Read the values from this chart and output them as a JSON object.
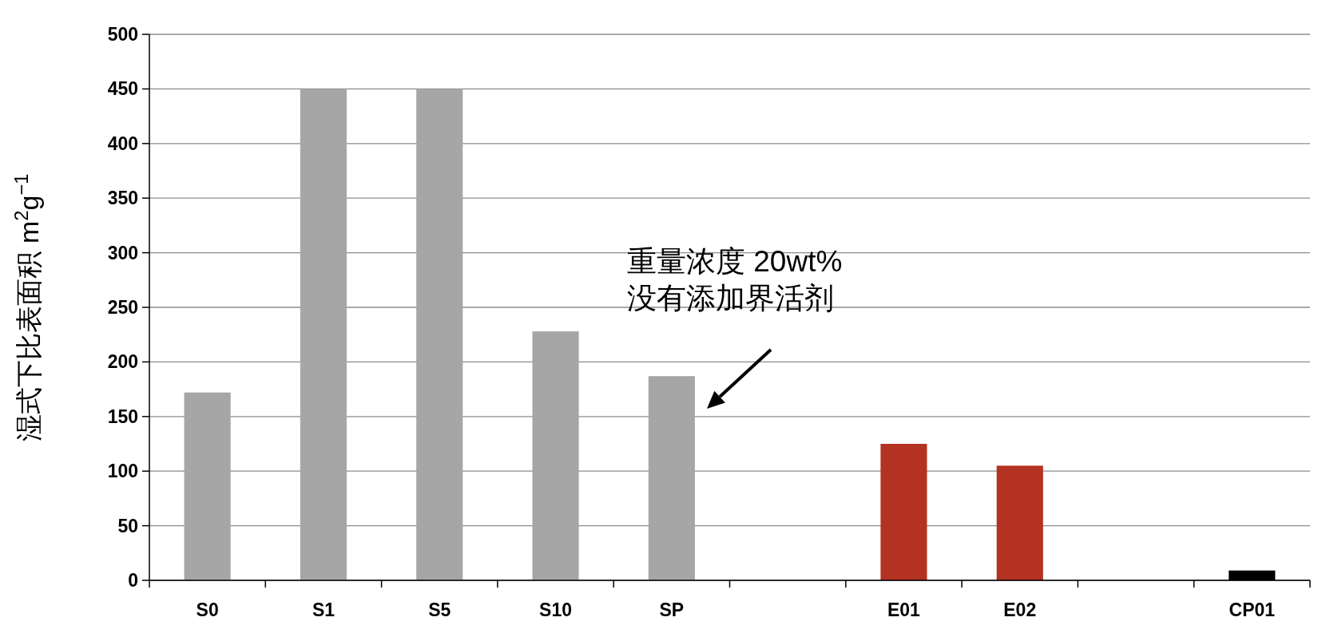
{
  "chart_data": {
    "type": "bar",
    "ylabel": "湿式下比表面积 m$^{2}$g$^{−1}$",
    "categories": [
      "S0",
      "S1",
      "S5",
      "S10",
      "SP",
      null,
      "E01",
      "E02",
      null,
      "CP01"
    ],
    "values": [
      172,
      450,
      450,
      228,
      187,
      null,
      125,
      105,
      null,
      9
    ],
    "colors": [
      "#a6a6a6",
      "#a6a6a6",
      "#a6a6a6",
      "#a6a6a6",
      "#a6a6a6",
      null,
      "#b33222",
      "#b33222",
      null,
      "#000000"
    ],
    "ylim": [
      0,
      500
    ],
    "yticks": [
      0,
      50,
      100,
      150,
      200,
      250,
      300,
      350,
      400,
      450,
      500
    ],
    "grid": "y",
    "annotations": [
      "重量浓度 20wt%\n没有添加界活剂"
    ]
  }
}
